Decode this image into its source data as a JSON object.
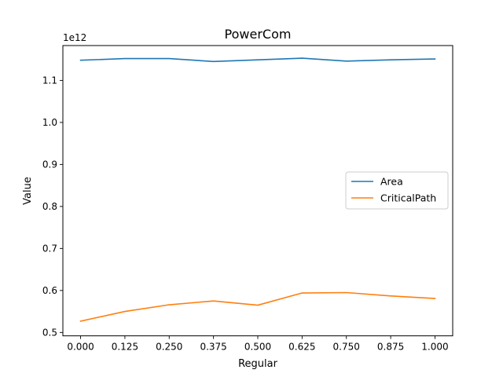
{
  "chart_data": {
    "type": "line",
    "title": "PowerCom",
    "xlabel": "Regular",
    "ylabel": "Value",
    "y_offset_label": "1e12",
    "x": [
      0.0,
      0.125,
      0.25,
      0.375,
      0.5,
      0.625,
      0.75,
      0.875,
      1.0
    ],
    "x_ticks": [
      "0.000",
      "0.125",
      "0.250",
      "0.375",
      "0.500",
      "0.625",
      "0.750",
      "0.875",
      "1.000"
    ],
    "y_ticks": [
      "0.5",
      "0.6",
      "0.7",
      "0.8",
      "0.9",
      "1.0",
      "1.1"
    ],
    "y_tick_values": [
      0.5,
      0.6,
      0.7,
      0.8,
      0.9,
      1.0,
      1.1
    ],
    "xlim": [
      -0.05,
      1.05
    ],
    "ylim": [
      0.492,
      1.183
    ],
    "y_scale_multiplier": 1000000000000.0,
    "grid": false,
    "legend_position": "center-right",
    "series": [
      {
        "name": "Area",
        "color": "#1f77b4",
        "values": [
          1.148,
          1.152,
          1.152,
          1.145,
          1.149,
          1.153,
          1.146,
          1.149,
          1.151
        ]
      },
      {
        "name": "CriticalPath",
        "color": "#ff7f0e",
        "values": [
          0.527,
          0.55,
          0.566,
          0.575,
          0.565,
          0.594,
          0.595,
          0.587,
          0.581
        ]
      }
    ]
  }
}
